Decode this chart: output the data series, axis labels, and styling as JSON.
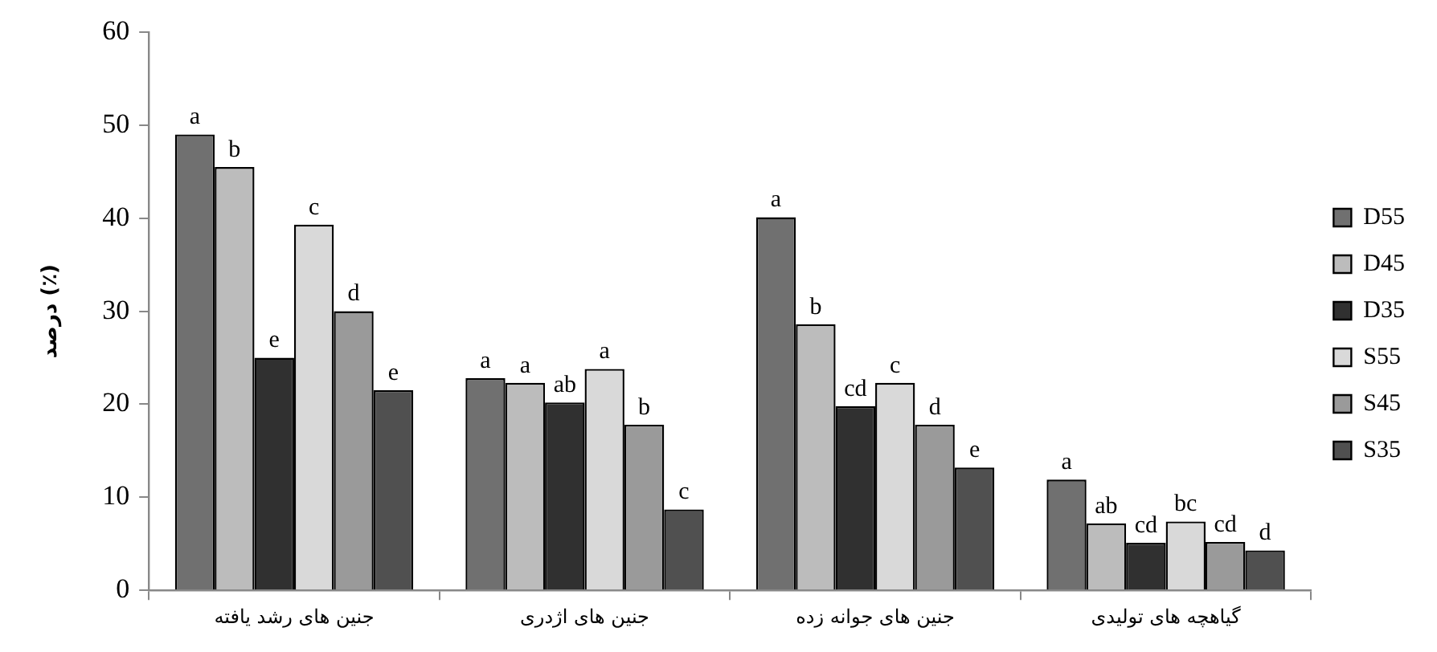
{
  "chart_data": {
    "type": "bar",
    "ylabel": "درصد (٪)",
    "categories": [
      "جنین های رشد یافته",
      "جنین های اژدری",
      "جنین های جوانه زده",
      "گیاهچه های تولیدی"
    ],
    "series": [
      {
        "name": "D55",
        "color": "#707070",
        "values": [
          49,
          22.8,
          40.1,
          11.9
        ],
        "value_labels": [
          "a",
          "a",
          "a",
          "a"
        ]
      },
      {
        "name": "D45",
        "color": "#bcbcbc",
        "values": [
          45.5,
          22.3,
          28.6,
          7.2
        ],
        "value_labels": [
          "b",
          "a",
          "b",
          "ab"
        ]
      },
      {
        "name": "D35",
        "color": "#303030",
        "values": [
          25,
          20.2,
          19.8,
          5.1
        ],
        "value_labels": [
          "e",
          "ab",
          "cd",
          "cd"
        ]
      },
      {
        "name": "S55",
        "color": "#d9d9d9",
        "values": [
          39.3,
          23.8,
          22.3,
          7.4
        ],
        "value_labels": [
          "c",
          "a",
          "c",
          "bc"
        ]
      },
      {
        "name": "S45",
        "color": "#9a9a9a",
        "values": [
          30,
          17.8,
          17.8,
          5.2
        ],
        "value_labels": [
          "d",
          "b",
          "d",
          "cd"
        ]
      },
      {
        "name": "S35",
        "color": "#505050",
        "values": [
          21.5,
          8.7,
          13.2,
          4.3
        ],
        "value_labels": [
          "e",
          "c",
          "e",
          "d"
        ]
      }
    ],
    "ylim": [
      0,
      60
    ],
    "yticks": [
      0,
      10,
      20,
      30,
      40,
      50,
      60
    ],
    "grid": false,
    "legend": "right"
  }
}
